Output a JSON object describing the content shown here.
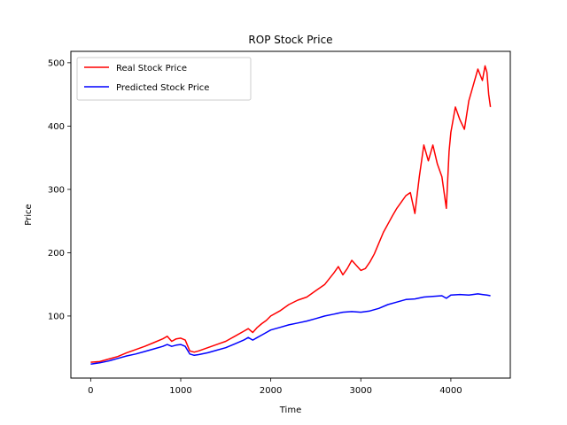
{
  "chart_data": {
    "type": "line",
    "title": "ROP Stock Price",
    "xlabel": "Time",
    "ylabel": "Price",
    "xlim": [
      -220,
      4660
    ],
    "ylim": [
      2,
      518
    ],
    "xticks": [
      0,
      1000,
      2000,
      3000,
      4000
    ],
    "yticks": [
      100,
      200,
      300,
      400,
      500
    ],
    "grid": false,
    "legend_position": "top-left",
    "series": [
      {
        "name": "Real Stock Price",
        "color": "#ff0000",
        "points": [
          [
            0,
            27
          ],
          [
            100,
            28
          ],
          [
            200,
            32
          ],
          [
            300,
            36
          ],
          [
            400,
            42
          ],
          [
            500,
            47
          ],
          [
            600,
            52
          ],
          [
            700,
            58
          ],
          [
            800,
            64
          ],
          [
            850,
            68
          ],
          [
            900,
            60
          ],
          [
            950,
            64
          ],
          [
            1000,
            65
          ],
          [
            1050,
            62
          ],
          [
            1100,
            45
          ],
          [
            1150,
            43
          ],
          [
            1200,
            45
          ],
          [
            1300,
            50
          ],
          [
            1400,
            55
          ],
          [
            1500,
            60
          ],
          [
            1600,
            68
          ],
          [
            1700,
            76
          ],
          [
            1750,
            80
          ],
          [
            1800,
            74
          ],
          [
            1850,
            82
          ],
          [
            1900,
            88
          ],
          [
            1950,
            93
          ],
          [
            2000,
            100
          ],
          [
            2100,
            108
          ],
          [
            2200,
            118
          ],
          [
            2300,
            125
          ],
          [
            2400,
            130
          ],
          [
            2500,
            140
          ],
          [
            2600,
            150
          ],
          [
            2700,
            168
          ],
          [
            2750,
            178
          ],
          [
            2800,
            165
          ],
          [
            2850,
            175
          ],
          [
            2900,
            188
          ],
          [
            2950,
            180
          ],
          [
            3000,
            172
          ],
          [
            3050,
            175
          ],
          [
            3100,
            185
          ],
          [
            3150,
            198
          ],
          [
            3200,
            215
          ],
          [
            3250,
            232
          ],
          [
            3300,
            245
          ],
          [
            3350,
            258
          ],
          [
            3400,
            270
          ],
          [
            3450,
            280
          ],
          [
            3500,
            290
          ],
          [
            3550,
            295
          ],
          [
            3600,
            262
          ],
          [
            3650,
            320
          ],
          [
            3700,
            370
          ],
          [
            3750,
            345
          ],
          [
            3800,
            370
          ],
          [
            3850,
            340
          ],
          [
            3900,
            320
          ],
          [
            3950,
            270
          ],
          [
            3980,
            360
          ],
          [
            4000,
            390
          ],
          [
            4050,
            430
          ],
          [
            4100,
            410
          ],
          [
            4150,
            395
          ],
          [
            4200,
            440
          ],
          [
            4250,
            465
          ],
          [
            4300,
            490
          ],
          [
            4350,
            472
          ],
          [
            4380,
            495
          ],
          [
            4400,
            485
          ],
          [
            4420,
            450
          ],
          [
            4440,
            430
          ]
        ]
      },
      {
        "name": "Predicted Stock Price",
        "color": "#0000ff",
        "points": [
          [
            0,
            24
          ],
          [
            100,
            26
          ],
          [
            200,
            29
          ],
          [
            300,
            33
          ],
          [
            400,
            37
          ],
          [
            500,
            40
          ],
          [
            600,
            44
          ],
          [
            700,
            48
          ],
          [
            800,
            52
          ],
          [
            850,
            55
          ],
          [
            900,
            52
          ],
          [
            950,
            54
          ],
          [
            1000,
            55
          ],
          [
            1050,
            52
          ],
          [
            1100,
            40
          ],
          [
            1150,
            38
          ],
          [
            1200,
            39
          ],
          [
            1300,
            42
          ],
          [
            1400,
            46
          ],
          [
            1500,
            50
          ],
          [
            1600,
            56
          ],
          [
            1700,
            62
          ],
          [
            1750,
            66
          ],
          [
            1800,
            62
          ],
          [
            1850,
            66
          ],
          [
            1900,
            70
          ],
          [
            1950,
            74
          ],
          [
            2000,
            78
          ],
          [
            2100,
            82
          ],
          [
            2200,
            86
          ],
          [
            2300,
            89
          ],
          [
            2400,
            92
          ],
          [
            2500,
            96
          ],
          [
            2600,
            100
          ],
          [
            2700,
            103
          ],
          [
            2800,
            106
          ],
          [
            2900,
            107
          ],
          [
            3000,
            106
          ],
          [
            3100,
            108
          ],
          [
            3200,
            112
          ],
          [
            3300,
            118
          ],
          [
            3400,
            122
          ],
          [
            3500,
            126
          ],
          [
            3600,
            127
          ],
          [
            3700,
            130
          ],
          [
            3800,
            131
          ],
          [
            3900,
            132
          ],
          [
            3950,
            128
          ],
          [
            4000,
            133
          ],
          [
            4100,
            134
          ],
          [
            4200,
            133
          ],
          [
            4300,
            135
          ],
          [
            4350,
            134
          ],
          [
            4400,
            133
          ],
          [
            4440,
            132
          ]
        ]
      }
    ]
  }
}
